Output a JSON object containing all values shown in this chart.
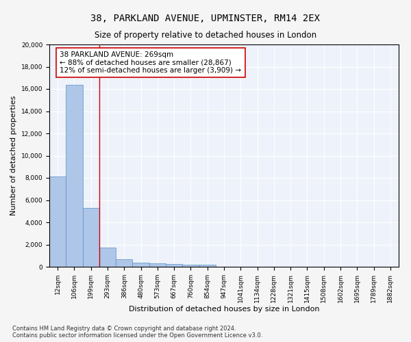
{
  "title_line1": "38, PARKLAND AVENUE, UPMINSTER, RM14 2EX",
  "title_line2": "Size of property relative to detached houses in London",
  "xlabel": "Distribution of detached houses by size in London",
  "ylabel": "Number of detached properties",
  "categories": [
    "12sqm",
    "106sqm",
    "199sqm",
    "293sqm",
    "386sqm",
    "480sqm",
    "573sqm",
    "667sqm",
    "760sqm",
    "854sqm",
    "947sqm",
    "1041sqm",
    "1134sqm",
    "1228sqm",
    "1321sqm",
    "1415sqm",
    "1508sqm",
    "1602sqm",
    "1695sqm",
    "1789sqm",
    "1882sqm"
  ],
  "bar_heights": [
    8100,
    16400,
    5300,
    1750,
    700,
    350,
    280,
    230,
    200,
    170,
    0,
    0,
    0,
    0,
    0,
    0,
    0,
    0,
    0,
    0,
    0
  ],
  "bar_color": "#aec6e8",
  "bar_edge_color": "#5a8fc2",
  "vline_x": 2.5,
  "vline_color": "#cc0000",
  "ylim": [
    0,
    20000
  ],
  "yticks": [
    0,
    2000,
    4000,
    6000,
    8000,
    10000,
    12000,
    14000,
    16000,
    18000,
    20000
  ],
  "annotation_text": "38 PARKLAND AVENUE: 269sqm\n← 88% of detached houses are smaller (28,867)\n12% of semi-detached houses are larger (3,909) →",
  "annotation_box_color": "#ffffff",
  "annotation_edge_color": "#cc0000",
  "footer_line1": "Contains HM Land Registry data © Crown copyright and database right 2024.",
  "footer_line2": "Contains public sector information licensed under the Open Government Licence v3.0.",
  "background_color": "#eef2fa",
  "grid_color": "#ffffff",
  "title1_fontsize": 10,
  "title2_fontsize": 8.5,
  "axis_label_fontsize": 8,
  "tick_fontsize": 6.5,
  "annotation_fontsize": 7.5,
  "footer_fontsize": 6
}
